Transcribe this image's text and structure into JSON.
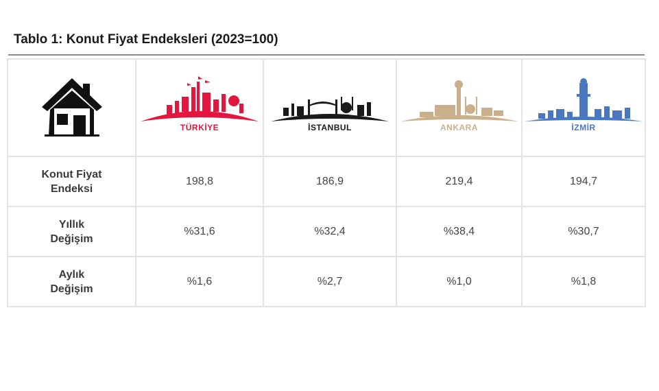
{
  "title": "Tablo 1: Konut Fiyat Endeksleri (2023=100)",
  "header_icon": "house-icon",
  "cities": [
    {
      "name": "TÜRKİYE",
      "color": "#e3163f",
      "icon": "turkiye-skyline-icon"
    },
    {
      "name": "İSTANBUL",
      "color": "#1a1a1a",
      "icon": "istanbul-skyline-icon"
    },
    {
      "name": "ANKARA",
      "color": "#c9b08a",
      "icon": "ankara-skyline-icon"
    },
    {
      "name": "İZMİR",
      "color": "#4a78c0",
      "icon": "izmir-skyline-icon"
    }
  ],
  "rows": [
    {
      "label_1": "Konut Fiyat",
      "label_2": "Endeksi",
      "values": [
        "198,8",
        "186,9",
        "219,4",
        "194,7"
      ]
    },
    {
      "label_1": "Yıllık",
      "label_2": "Değişim",
      "values": [
        "%31,6",
        "%32,4",
        "%38,4",
        "%30,7"
      ]
    },
    {
      "label_1": "Aylık",
      "label_2": "Değişim",
      "values": [
        "%1,6",
        "%2,7",
        "%1,0",
        "%1,8"
      ]
    }
  ]
}
